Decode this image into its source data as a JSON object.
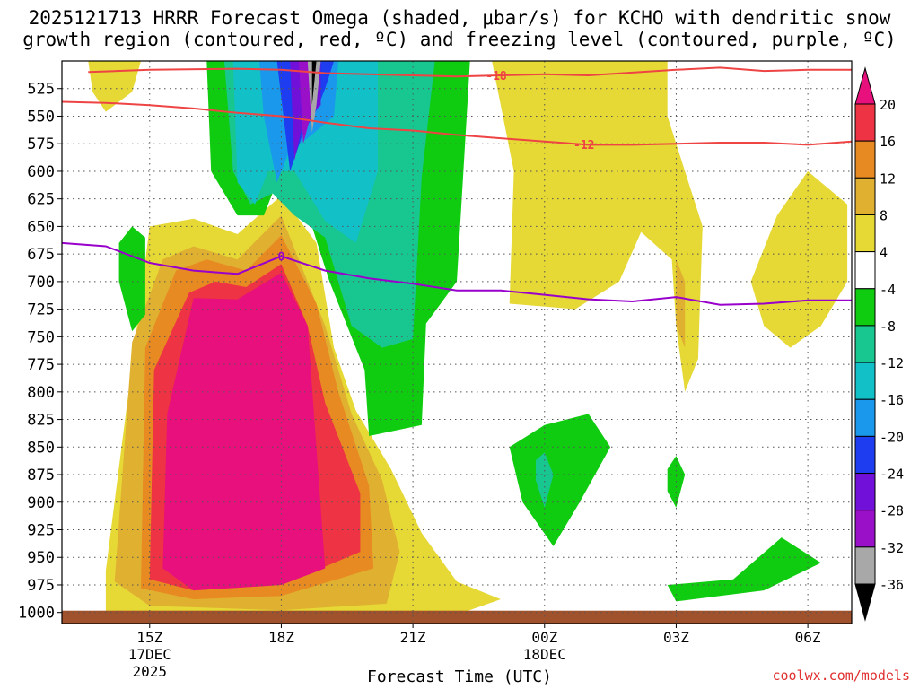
{
  "chart_data": {
    "type": "heatmap",
    "title_line1": "2025121713 HRRR Forecast Omega (shaded, μbar/s) for KCHO with dendritic snow",
    "title_line2": "growth region (contoured, red, ºC) and freezing level (contoured, purple, ºC)",
    "xlabel": "Forecast Time (UTC)",
    "ylabel": "",
    "credit": "coolwx.com/models",
    "x_range_hours": [
      13,
      7
    ],
    "y_range_hpa": [
      500,
      1010
    ],
    "y_ticks": [
      525,
      550,
      575,
      600,
      625,
      650,
      675,
      700,
      725,
      750,
      775,
      800,
      825,
      850,
      875,
      900,
      925,
      950,
      975,
      1000
    ],
    "x_ticks": [
      {
        "label": "15Z",
        "hour": 15,
        "sub1": "17DEC",
        "sub2": "2025"
      },
      {
        "label": "18Z",
        "hour": 18,
        "sub1": "",
        "sub2": ""
      },
      {
        "label": "21Z",
        "hour": 21,
        "sub1": "",
        "sub2": ""
      },
      {
        "label": "00Z",
        "hour": 24,
        "sub1": "18DEC",
        "sub2": ""
      },
      {
        "label": "03Z",
        "hour": 27,
        "sub1": "",
        "sub2": ""
      },
      {
        "label": "06Z",
        "hour": 30,
        "sub1": "",
        "sub2": ""
      }
    ],
    "colorbar": {
      "labels": [
        "20",
        "16",
        "12",
        "8",
        "4",
        "-4",
        "-8",
        "-12",
        "-16",
        "-20",
        "-24",
        "-28",
        "-32",
        "-36"
      ],
      "bins": [
        {
          "range": "16 to 20",
          "color": "#ee3344"
        },
        {
          "range": "12 to 16",
          "color": "#e88a22"
        },
        {
          "range": "8 to 12",
          "color": "#e0b030"
        },
        {
          "range": "4 to 8",
          "color": "#e6d835"
        },
        {
          "range": "-4 to 4",
          "color": "#ffffff"
        },
        {
          "range": "-8 to -4",
          "color": "#10cc10"
        },
        {
          "range": "-12 to -8",
          "color": "#18c690"
        },
        {
          "range": "-16 to -12",
          "color": "#12c0c8"
        },
        {
          "range": "-20 to -16",
          "color": "#1a98ec"
        },
        {
          "range": "-24 to -20",
          "color": "#1e3cf0"
        },
        {
          "range": "-28 to -24",
          "color": "#7010d8"
        },
        {
          "range": "-32 to -28",
          "color": "#9a10c8"
        },
        {
          "range": "-36 to -32",
          "color": "#a8a8a8"
        }
      ],
      "over_color": "#e8107c",
      "under_color": "#000000"
    },
    "series": [
      {
        "name": "-18 ºC isotherm",
        "color": "#ee4444",
        "label": "-18",
        "x": [
          13.6,
          15,
          17,
          18,
          19,
          21,
          22,
          23,
          24,
          25,
          27,
          28,
          29,
          30,
          31
        ],
        "y": [
          510,
          508,
          507,
          508,
          511,
          513,
          514,
          513,
          512,
          513,
          508,
          506,
          509,
          508,
          508
        ],
        "label_hour": 22.9
      },
      {
        "name": "-12 ºC isotherm",
        "color": "#ee4444",
        "label": "-12",
        "x": [
          13,
          14,
          15,
          16,
          17,
          18,
          19,
          20,
          21,
          22,
          23,
          24,
          25,
          26,
          27,
          28,
          29,
          30,
          31
        ],
        "y": [
          537,
          538,
          540,
          543,
          547,
          550,
          556,
          561,
          563,
          567,
          570,
          573,
          576,
          576,
          575,
          574,
          574,
          576,
          573
        ],
        "label_hour": 24.9
      },
      {
        "name": "0 ºC freezing level",
        "color": "#9900cc",
        "label": "0",
        "x": [
          13,
          14,
          15,
          16,
          17,
          18,
          19,
          20,
          21,
          22,
          23,
          24,
          25,
          26,
          27,
          28,
          29,
          30,
          31
        ],
        "y": [
          665,
          668,
          683,
          690,
          693,
          677,
          690,
          697,
          702,
          708,
          708,
          712,
          716,
          718,
          714,
          721,
          720,
          717,
          717
        ],
        "label_hour": 18
      }
    ],
    "shaded_regions": [
      {
        "name": "yellow-top-left",
        "color": "#e6d835",
        "points": [
          [
            13.6,
            500
          ],
          [
            13.7,
            528
          ],
          [
            14.0,
            546
          ],
          [
            14.6,
            528
          ],
          [
            14.8,
            500
          ]
        ]
      },
      {
        "name": "yellow-1",
        "color": "#e6d835",
        "points": [
          [
            14.0,
            962
          ],
          [
            15.0,
            650
          ],
          [
            16.0,
            643
          ],
          [
            17.0,
            657
          ],
          [
            18.0,
            622
          ],
          [
            18.8,
            665
          ],
          [
            19.2,
            760
          ],
          [
            19.7,
            817
          ],
          [
            20.5,
            870
          ],
          [
            21.2,
            928
          ],
          [
            22.0,
            972
          ],
          [
            23.0,
            988
          ],
          [
            22.0,
            1002
          ],
          [
            18.0,
            1002
          ],
          [
            14.0,
            1000
          ]
        ]
      },
      {
        "name": "orange-outer-2",
        "color": "#e0b030",
        "points": [
          [
            14.2,
            972
          ],
          [
            14.6,
            755
          ],
          [
            15.3,
            680
          ],
          [
            16.0,
            668
          ],
          [
            17.0,
            680
          ],
          [
            18.0,
            640
          ],
          [
            19.0,
            740
          ],
          [
            19.6,
            820
          ],
          [
            20.3,
            880
          ],
          [
            20.7,
            945
          ],
          [
            20.4,
            992
          ],
          [
            18.0,
            998
          ],
          [
            15.0,
            994
          ]
        ]
      },
      {
        "name": "orange-outer-1",
        "color": "#e88a22",
        "points": [
          [
            14.8,
            978
          ],
          [
            14.9,
            760
          ],
          [
            15.6,
            690
          ],
          [
            16.3,
            680
          ],
          [
            17.2,
            690
          ],
          [
            18.0,
            658
          ],
          [
            18.8,
            720
          ],
          [
            19.3,
            800
          ],
          [
            20.0,
            885
          ],
          [
            20.1,
            960
          ],
          [
            18.0,
            985
          ],
          [
            16.0,
            988
          ]
        ]
      },
      {
        "name": "red-core",
        "color": "#ee3344",
        "points": [
          [
            15.0,
            970
          ],
          [
            15.1,
            780
          ],
          [
            15.9,
            710
          ],
          [
            16.5,
            700
          ],
          [
            17.2,
            705
          ],
          [
            18.0,
            684
          ],
          [
            18.6,
            740
          ],
          [
            19.0,
            810
          ],
          [
            19.8,
            892
          ],
          [
            19.8,
            945
          ],
          [
            18.0,
            975
          ],
          [
            16.0,
            980
          ]
        ]
      },
      {
        "name": "magenta-core",
        "color": "#e8107c",
        "points": [
          [
            15.3,
            960
          ],
          [
            15.4,
            820
          ],
          [
            16.0,
            715
          ],
          [
            17.0,
            716
          ],
          [
            18.0,
            692
          ],
          [
            18.6,
            740
          ],
          [
            19.0,
            960
          ],
          [
            18.0,
            975
          ],
          [
            16.0,
            980
          ]
        ]
      },
      {
        "name": "green-1",
        "color": "#10cc10",
        "points": [
          [
            16.3,
            500
          ],
          [
            16.4,
            600
          ],
          [
            17.0,
            640
          ],
          [
            17.6,
            640
          ],
          [
            18.0,
            600
          ],
          [
            18.7,
            650
          ],
          [
            19.1,
            700
          ],
          [
            19.9,
            780
          ],
          [
            20.0,
            840
          ],
          [
            21.2,
            830
          ],
          [
            21.3,
            738
          ],
          [
            22.0,
            700
          ],
          [
            22.3,
            500
          ]
        ]
      },
      {
        "name": "green-2",
        "color": "#10cc10",
        "points": [
          [
            14.6,
            650
          ],
          [
            14.9,
            660
          ],
          [
            14.9,
            730
          ],
          [
            14.6,
            745
          ],
          [
            14.3,
            700
          ],
          [
            14.3,
            665
          ]
        ]
      },
      {
        "name": "teal-1",
        "color": "#18c690",
        "points": [
          [
            16.7,
            500
          ],
          [
            16.9,
            600
          ],
          [
            17.3,
            630
          ],
          [
            17.8,
            620
          ],
          [
            18.3,
            640
          ],
          [
            19.0,
            660
          ],
          [
            19.6,
            740
          ],
          [
            20.3,
            760
          ],
          [
            21.0,
            752
          ],
          [
            21.2,
            605
          ],
          [
            21.5,
            500
          ]
        ]
      },
      {
        "name": "cyan-1",
        "color": "#12c0c8",
        "points": [
          [
            16.9,
            500
          ],
          [
            17.0,
            610
          ],
          [
            17.4,
            630
          ],
          [
            17.7,
            600
          ],
          [
            18.3,
            600
          ],
          [
            19.0,
            645
          ],
          [
            19.7,
            665
          ],
          [
            20.2,
            600
          ],
          [
            20.2,
            500
          ]
        ]
      },
      {
        "name": "blue-1",
        "color": "#1a98ec",
        "points": [
          [
            17.5,
            500
          ],
          [
            17.6,
            550
          ],
          [
            17.9,
            610
          ],
          [
            18.2,
            580
          ],
          [
            18.6,
            570
          ],
          [
            19.2,
            550
          ],
          [
            19.3,
            500
          ]
        ]
      },
      {
        "name": "deep-blue-1",
        "color": "#1e3cf0",
        "points": [
          [
            17.9,
            500
          ],
          [
            18.2,
            600
          ],
          [
            18.5,
            565
          ],
          [
            18.8,
            545
          ],
          [
            19.0,
            525
          ],
          [
            19.2,
            500
          ]
        ]
      },
      {
        "name": "violet-1",
        "color": "#7010d8",
        "points": [
          [
            18.2,
            500
          ],
          [
            18.3,
            590
          ],
          [
            18.5,
            555
          ],
          [
            18.9,
            540
          ],
          [
            18.9,
            500
          ]
        ]
      },
      {
        "name": "violet-2",
        "color": "#9a10c8",
        "points": [
          [
            18.4,
            500
          ],
          [
            18.5,
            575
          ],
          [
            18.7,
            545
          ],
          [
            18.8,
            500
          ]
        ]
      },
      {
        "name": "gray-1",
        "color": "#a8a8a8",
        "points": [
          [
            18.6,
            500
          ],
          [
            18.7,
            565
          ],
          [
            18.8,
            540
          ],
          [
            18.9,
            500
          ]
        ]
      },
      {
        "name": "black-core",
        "color": "#000000",
        "points": [
          [
            18.7,
            500
          ],
          [
            18.7,
            540
          ],
          [
            18.8,
            500
          ]
        ]
      },
      {
        "name": "yellow-mid",
        "color": "#e6d835",
        "points": [
          [
            22.8,
            500
          ],
          [
            23.3,
            600
          ],
          [
            23.2,
            720
          ],
          [
            24.7,
            725
          ],
          [
            25.7,
            700
          ],
          [
            26.2,
            655
          ],
          [
            26.9,
            680
          ],
          [
            27.0,
            740
          ],
          [
            27.2,
            800
          ],
          [
            27.5,
            770
          ],
          [
            27.6,
            650
          ],
          [
            27.2,
            600
          ],
          [
            26.8,
            550
          ],
          [
            26.8,
            500
          ]
        ]
      },
      {
        "name": "yellow-right",
        "color": "#e6d835",
        "points": [
          [
            28.7,
            700
          ],
          [
            29.3,
            640
          ],
          [
            30.0,
            600
          ],
          [
            30.9,
            630
          ],
          [
            30.9,
            700
          ],
          [
            30.3,
            740
          ],
          [
            29.6,
            760
          ],
          [
            29.0,
            740
          ]
        ]
      },
      {
        "name": "orange-small",
        "color": "#e0b030",
        "points": [
          [
            27.0,
            680
          ],
          [
            27.2,
            700
          ],
          [
            27.2,
            760
          ],
          [
            27.0,
            740
          ]
        ]
      },
      {
        "name": "green-3",
        "color": "#10cc10",
        "points": [
          [
            23.2,
            850
          ],
          [
            24.0,
            830
          ],
          [
            25.0,
            820
          ],
          [
            25.5,
            850
          ],
          [
            24.8,
            900
          ],
          [
            24.2,
            940
          ],
          [
            23.5,
            900
          ]
        ]
      },
      {
        "name": "teal-2",
        "color": "#18c690",
        "points": [
          [
            23.8,
            862
          ],
          [
            24.0,
            855
          ],
          [
            24.2,
            875
          ],
          [
            24.0,
            905
          ],
          [
            23.8,
            880
          ]
        ]
      },
      {
        "name": "green-4",
        "color": "#10cc10",
        "points": [
          [
            26.8,
            870
          ],
          [
            27.0,
            858
          ],
          [
            27.2,
            875
          ],
          [
            27.0,
            905
          ],
          [
            26.8,
            890
          ]
        ]
      },
      {
        "name": "green-5",
        "color": "#10cc10",
        "points": [
          [
            26.8,
            975
          ],
          [
            28.3,
            970
          ],
          [
            29.4,
            932
          ],
          [
            30.3,
            955
          ],
          [
            29.0,
            980
          ],
          [
            28.0,
            985
          ],
          [
            27.0,
            990
          ]
        ]
      }
    ],
    "ground": {
      "pressure_hpa": 1000,
      "color": "#a0522d"
    }
  }
}
